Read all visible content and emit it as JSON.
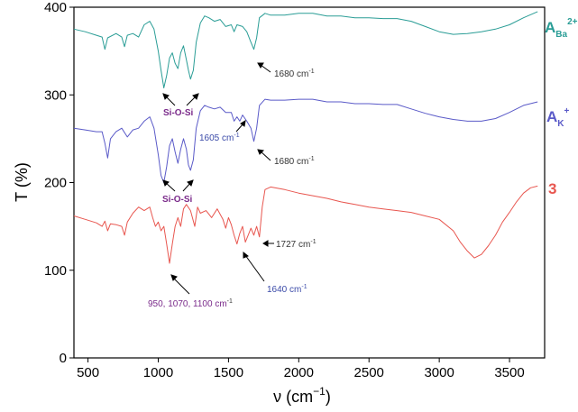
{
  "chart_data": {
    "type": "line",
    "xlabel": "ν (cm",
    "xlabel_sup": "−1",
    "xlabel_close": ")",
    "ylabel": "T (%)",
    "xlim": [
      400,
      3750
    ],
    "ylim": [
      0,
      400
    ],
    "xticks": [
      "500",
      "1000",
      "1500",
      "2000",
      "2500",
      "3000",
      "3500"
    ],
    "yticks": [
      "0",
      "100",
      "200",
      "300",
      "400"
    ],
    "series": [
      {
        "name": "A",
        "name_sub": "Ba",
        "name_sup": "2+",
        "color": "#2a9d96",
        "points": [
          [
            400,
            375
          ],
          [
            480,
            372
          ],
          [
            560,
            368
          ],
          [
            600,
            366
          ],
          [
            620,
            352
          ],
          [
            640,
            365
          ],
          [
            700,
            370
          ],
          [
            740,
            366
          ],
          [
            760,
            355
          ],
          [
            780,
            368
          ],
          [
            820,
            370
          ],
          [
            860,
            366
          ],
          [
            900,
            380
          ],
          [
            940,
            384
          ],
          [
            970,
            375
          ],
          [
            1000,
            350
          ],
          [
            1020,
            328
          ],
          [
            1040,
            308
          ],
          [
            1060,
            322
          ],
          [
            1080,
            342
          ],
          [
            1100,
            348
          ],
          [
            1120,
            336
          ],
          [
            1140,
            330
          ],
          [
            1160,
            348
          ],
          [
            1180,
            356
          ],
          [
            1200,
            340
          ],
          [
            1215,
            328
          ],
          [
            1230,
            318
          ],
          [
            1250,
            328
          ],
          [
            1270,
            360
          ],
          [
            1300,
            382
          ],
          [
            1330,
            390
          ],
          [
            1360,
            388
          ],
          [
            1400,
            384
          ],
          [
            1440,
            386
          ],
          [
            1480,
            378
          ],
          [
            1520,
            380
          ],
          [
            1540,
            372
          ],
          [
            1560,
            380
          ],
          [
            1600,
            378
          ],
          [
            1630,
            372
          ],
          [
            1660,
            360
          ],
          [
            1680,
            352
          ],
          [
            1700,
            365
          ],
          [
            1720,
            388
          ],
          [
            1760,
            393
          ],
          [
            1800,
            391
          ],
          [
            1900,
            391
          ],
          [
            2000,
            393
          ],
          [
            2100,
            393
          ],
          [
            2200,
            390
          ],
          [
            2300,
            390
          ],
          [
            2400,
            388
          ],
          [
            2500,
            388
          ],
          [
            2600,
            387
          ],
          [
            2700,
            387
          ],
          [
            2800,
            384
          ],
          [
            2900,
            378
          ],
          [
            3000,
            372
          ],
          [
            3100,
            369
          ],
          [
            3200,
            370
          ],
          [
            3300,
            372
          ],
          [
            3400,
            375
          ],
          [
            3500,
            380
          ],
          [
            3600,
            388
          ],
          [
            3700,
            395
          ]
        ]
      },
      {
        "name": "A",
        "name_sub": "K",
        "name_sup": "+",
        "color": "#5a5ac8",
        "points": [
          [
            400,
            262
          ],
          [
            480,
            260
          ],
          [
            560,
            258
          ],
          [
            600,
            258
          ],
          [
            620,
            245
          ],
          [
            640,
            228
          ],
          [
            660,
            250
          ],
          [
            700,
            258
          ],
          [
            740,
            262
          ],
          [
            780,
            252
          ],
          [
            820,
            260
          ],
          [
            860,
            262
          ],
          [
            900,
            270
          ],
          [
            940,
            275
          ],
          [
            970,
            262
          ],
          [
            1000,
            232
          ],
          [
            1020,
            208
          ],
          [
            1040,
            200
          ],
          [
            1060,
            218
          ],
          [
            1080,
            242
          ],
          [
            1100,
            250
          ],
          [
            1120,
            235
          ],
          [
            1140,
            222
          ],
          [
            1160,
            238
          ],
          [
            1180,
            250
          ],
          [
            1200,
            238
          ],
          [
            1215,
            220
          ],
          [
            1230,
            214
          ],
          [
            1250,
            226
          ],
          [
            1270,
            262
          ],
          [
            1300,
            282
          ],
          [
            1330,
            288
          ],
          [
            1360,
            286
          ],
          [
            1400,
            284
          ],
          [
            1440,
            286
          ],
          [
            1480,
            280
          ],
          [
            1520,
            280
          ],
          [
            1540,
            270
          ],
          [
            1560,
            275
          ],
          [
            1580,
            270
          ],
          [
            1600,
            277
          ],
          [
            1630,
            270
          ],
          [
            1660,
            262
          ],
          [
            1680,
            247
          ],
          [
            1700,
            262
          ],
          [
            1720,
            288
          ],
          [
            1760,
            295
          ],
          [
            1800,
            294
          ],
          [
            1900,
            294
          ],
          [
            2000,
            295
          ],
          [
            2100,
            295
          ],
          [
            2200,
            292
          ],
          [
            2300,
            292
          ],
          [
            2400,
            290
          ],
          [
            2500,
            290
          ],
          [
            2600,
            289
          ],
          [
            2700,
            289
          ],
          [
            2800,
            284
          ],
          [
            2900,
            279
          ],
          [
            3000,
            275
          ],
          [
            3100,
            272
          ],
          [
            3200,
            270
          ],
          [
            3300,
            270
          ],
          [
            3400,
            273
          ],
          [
            3500,
            280
          ],
          [
            3600,
            288
          ],
          [
            3700,
            292
          ]
        ]
      },
      {
        "name": "3",
        "color": "#e8564f",
        "points": [
          [
            400,
            162
          ],
          [
            480,
            158
          ],
          [
            560,
            154
          ],
          [
            600,
            150
          ],
          [
            620,
            156
          ],
          [
            640,
            145
          ],
          [
            660,
            153
          ],
          [
            700,
            152
          ],
          [
            740,
            150
          ],
          [
            760,
            140
          ],
          [
            780,
            155
          ],
          [
            820,
            165
          ],
          [
            860,
            172
          ],
          [
            900,
            168
          ],
          [
            940,
            172
          ],
          [
            960,
            160
          ],
          [
            980,
            150
          ],
          [
            1000,
            155
          ],
          [
            1020,
            145
          ],
          [
            1040,
            150
          ],
          [
            1060,
            130
          ],
          [
            1080,
            108
          ],
          [
            1100,
            130
          ],
          [
            1120,
            150
          ],
          [
            1140,
            160
          ],
          [
            1160,
            150
          ],
          [
            1180,
            170
          ],
          [
            1200,
            175
          ],
          [
            1230,
            168
          ],
          [
            1260,
            150
          ],
          [
            1280,
            172
          ],
          [
            1300,
            165
          ],
          [
            1340,
            168
          ],
          [
            1380,
            160
          ],
          [
            1420,
            170
          ],
          [
            1460,
            158
          ],
          [
            1480,
            148
          ],
          [
            1500,
            160
          ],
          [
            1520,
            152
          ],
          [
            1540,
            140
          ],
          [
            1560,
            130
          ],
          [
            1580,
            142
          ],
          [
            1600,
            150
          ],
          [
            1620,
            132
          ],
          [
            1640,
            140
          ],
          [
            1660,
            148
          ],
          [
            1680,
            140
          ],
          [
            1700,
            150
          ],
          [
            1720,
            138
          ],
          [
            1740,
            172
          ],
          [
            1760,
            192
          ],
          [
            1800,
            195
          ],
          [
            1900,
            192
          ],
          [
            2000,
            188
          ],
          [
            2100,
            185
          ],
          [
            2200,
            182
          ],
          [
            2300,
            178
          ],
          [
            2400,
            175
          ],
          [
            2500,
            172
          ],
          [
            2600,
            170
          ],
          [
            2700,
            168
          ],
          [
            2800,
            166
          ],
          [
            2900,
            162
          ],
          [
            3000,
            158
          ],
          [
            3100,
            145
          ],
          [
            3150,
            132
          ],
          [
            3200,
            122
          ],
          [
            3250,
            114
          ],
          [
            3300,
            118
          ],
          [
            3350,
            128
          ],
          [
            3400,
            140
          ],
          [
            3450,
            155
          ],
          [
            3500,
            166
          ],
          [
            3550,
            178
          ],
          [
            3600,
            188
          ],
          [
            3650,
            194
          ],
          [
            3700,
            196
          ]
        ]
      }
    ],
    "annotations": {
      "si_o_si_top": "Si-O-Si",
      "peak_1680_top": "1680 cm",
      "peak_1680_top_sup": "-1",
      "si_o_si_mid": "Si-O-Si",
      "peak_1605": "1605 cm",
      "peak_1605_sup": "-1",
      "peak_1680_mid": "1680 cm",
      "peak_1680_mid_sup": "-1",
      "peak_1727": "1727 cm",
      "peak_1727_sup": "-1",
      "peak_1640": "1640 cm",
      "peak_1640_sup": "-1",
      "peak_950": "950, 1070, 1100 cm",
      "peak_950_sup": "-1"
    },
    "colors": {
      "teal": "#2a9d96",
      "blue": "#5a5ac8",
      "red": "#e8564f",
      "purple": "#7a2a8a",
      "blue_text": "#3a4aa8",
      "dark_text": "#333333"
    }
  }
}
